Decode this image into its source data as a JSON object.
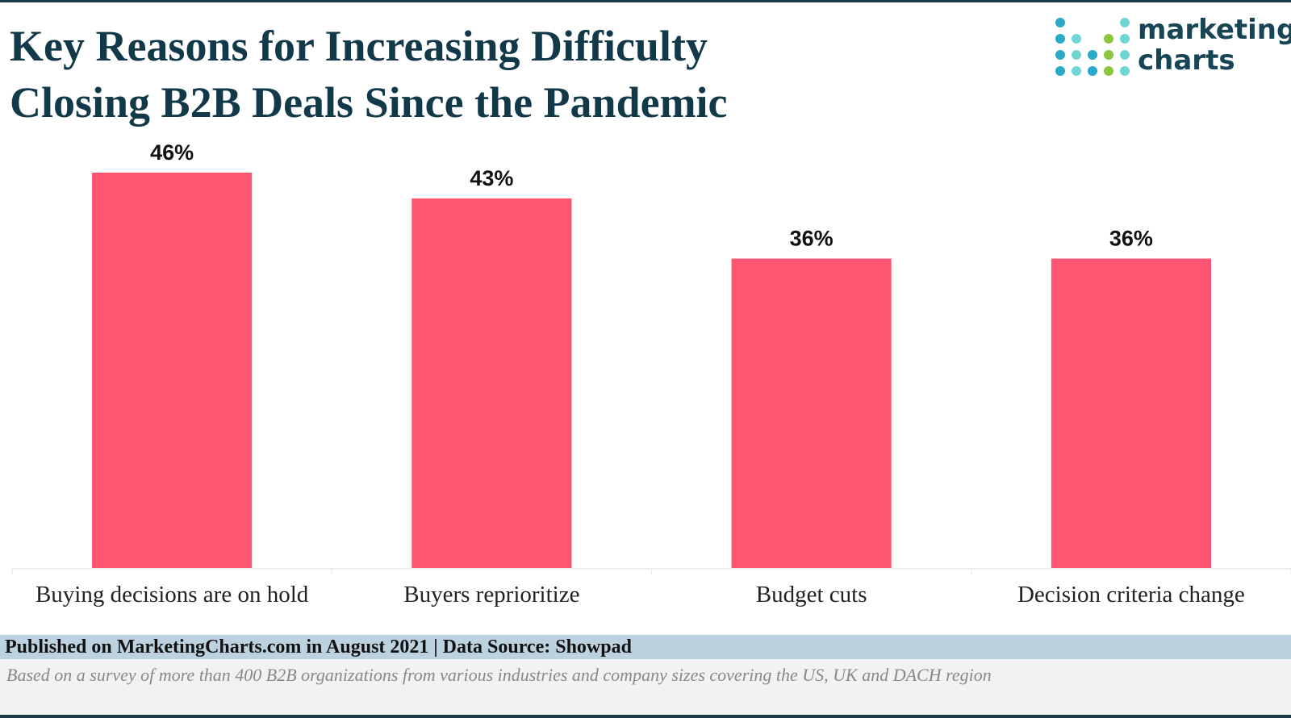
{
  "header": {
    "title": "Key Reasons for Increasing Difficulty Closing B2B Deals Since the Pandemic",
    "logo": [
      "marketing",
      "charts"
    ]
  },
  "chart_data": {
    "type": "bar",
    "categories": [
      "Buying decisions are on hold",
      "Buyers reprioritize",
      "Budget cuts",
      "Decision criteria change"
    ],
    "values": [
      46,
      43,
      36,
      36
    ],
    "value_labels": [
      "46%",
      "43%",
      "36%",
      "36%"
    ],
    "color": "#ff5573"
  },
  "footer": {
    "source": "Published on MarketingCharts.com in August 2021 | Data Source: Showpad",
    "note": "Based on a survey of more than 400 B2B organizations from various industries and company sizes covering the US, UK and DACH region"
  }
}
